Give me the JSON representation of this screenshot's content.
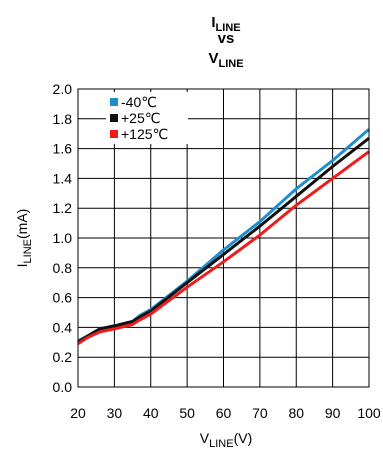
{
  "colors": {
    "series_-40": "#1f8ecf",
    "series_25": "#111111",
    "series_125": "#ee1c1c",
    "grid": "#000000"
  },
  "chart_data": {
    "type": "line",
    "title": {
      "line1_main": "I",
      "line1_sub": "LINE",
      "line2": "vs",
      "line3_main": "V",
      "line3_sub": "LINE"
    },
    "xlabel": {
      "main": "V",
      "sub": "LINE",
      "unit": "(V)"
    },
    "ylabel": {
      "main": "I",
      "sub": "LINE",
      "unit": "(mA)"
    },
    "xlim": [
      20,
      100
    ],
    "ylim": [
      0.0,
      2.0
    ],
    "x_ticks": [
      "20",
      "30",
      "40",
      "50",
      "60",
      "70",
      "80",
      "90",
      "100"
    ],
    "y_ticks": [
      "0.0",
      "0.2",
      "0.4",
      "0.6",
      "0.8",
      "1.0",
      "1.2",
      "1.4",
      "1.6",
      "1.8",
      "2.0"
    ],
    "grid": true,
    "legend_position": "top-left",
    "series": [
      {
        "name": "-40℃",
        "color_key": "series_-40",
        "x": [
          20,
          22.5,
          26,
          30,
          35,
          37,
          40,
          50,
          60,
          70,
          80,
          90,
          100
        ],
        "y": [
          0.31,
          0.34,
          0.39,
          0.41,
          0.44,
          0.48,
          0.52,
          0.71,
          0.92,
          1.11,
          1.33,
          1.52,
          1.73
        ]
      },
      {
        "name": "+25℃",
        "color_key": "series_25",
        "x": [
          20,
          22.5,
          26,
          30,
          35,
          37,
          40,
          50,
          60,
          70,
          80,
          90,
          100
        ],
        "y": [
          0.3,
          0.34,
          0.39,
          0.41,
          0.44,
          0.47,
          0.51,
          0.7,
          0.89,
          1.08,
          1.28,
          1.48,
          1.67
        ]
      },
      {
        "name": "+125℃",
        "color_key": "series_125",
        "x": [
          20,
          22.5,
          26,
          30,
          35,
          37,
          40,
          50,
          60,
          70,
          80,
          90,
          100
        ],
        "y": [
          0.29,
          0.33,
          0.37,
          0.39,
          0.42,
          0.45,
          0.49,
          0.67,
          0.84,
          1.02,
          1.22,
          1.4,
          1.58
        ]
      }
    ]
  }
}
